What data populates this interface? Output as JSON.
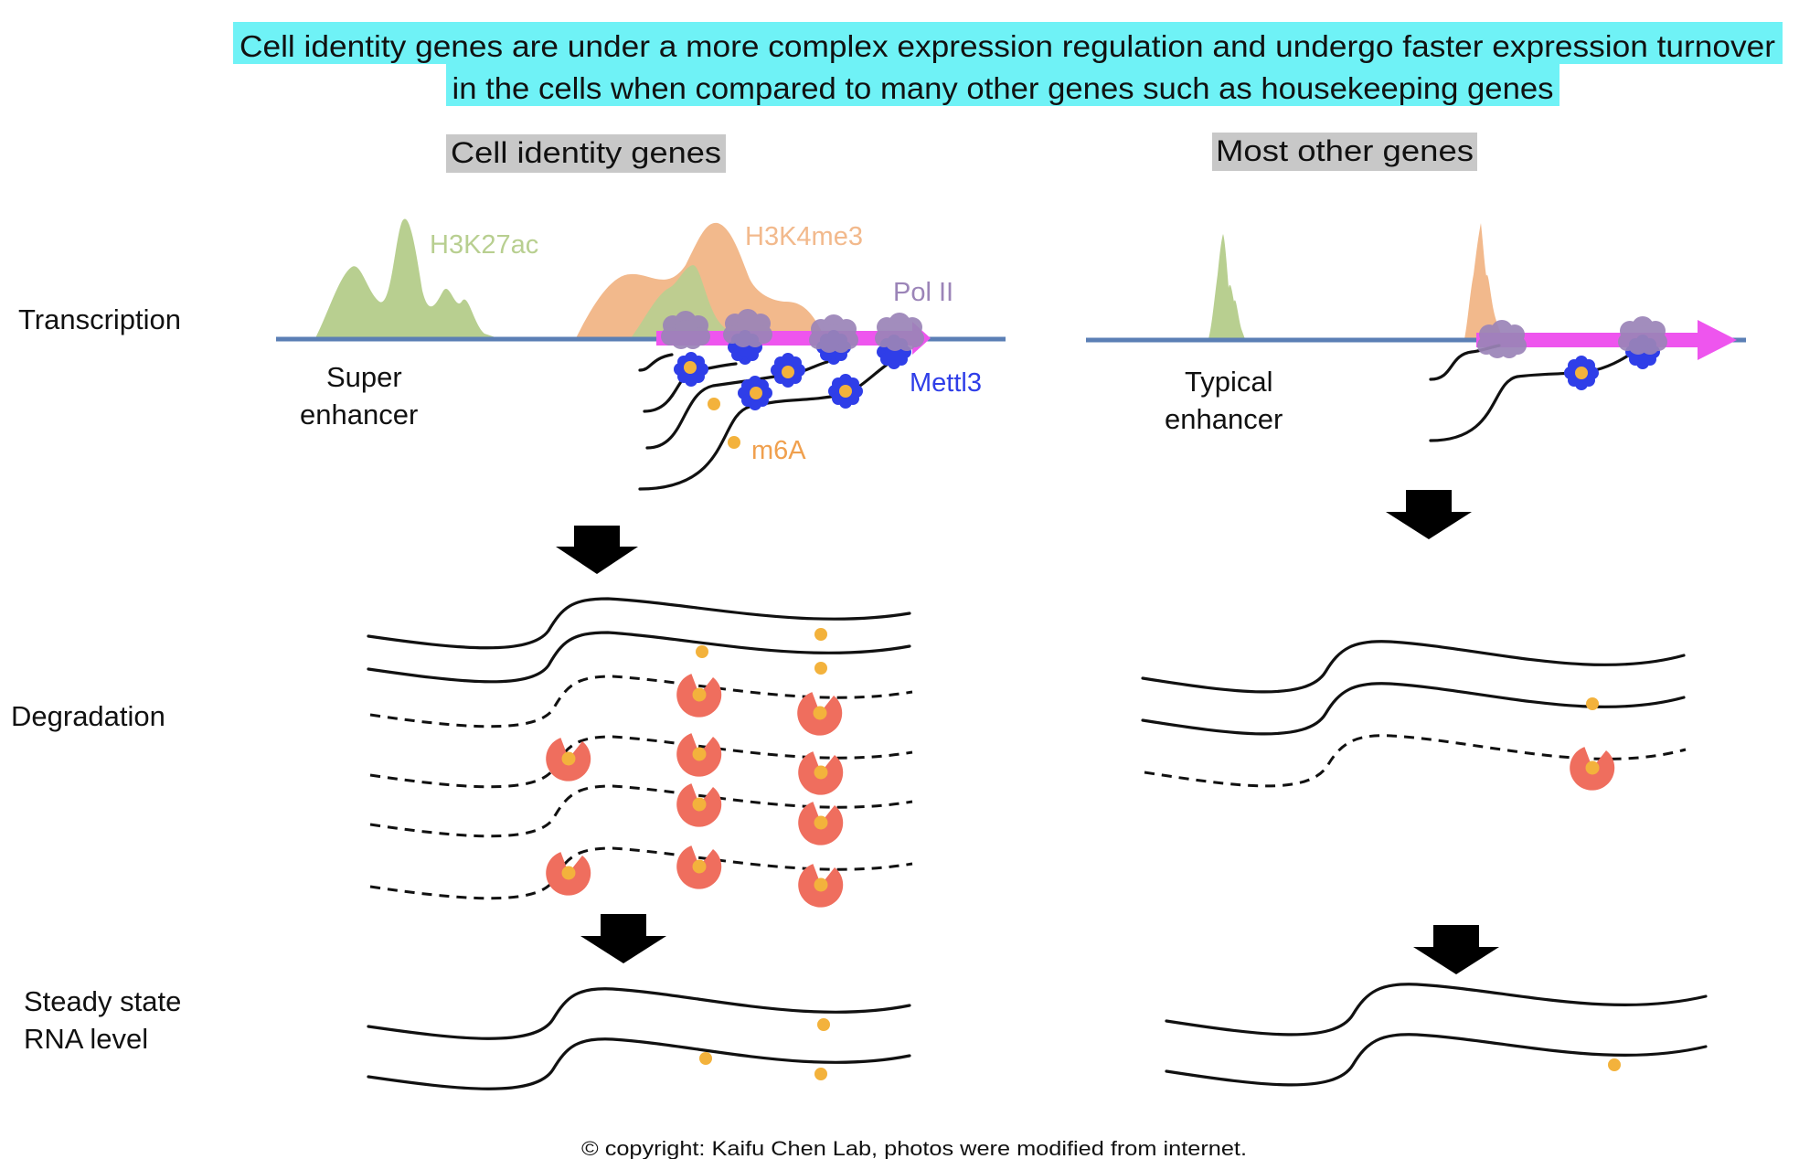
{
  "title": {
    "line1": "Cell identity genes are under a more complex expression regulation and undergo faster expression turnover",
    "line2": "in the cells when compared to many other genes such as housekeeping genes",
    "highlight_color": "#6ff2f6"
  },
  "columns": {
    "left_header": "Cell identity genes",
    "right_header": "Most other genes",
    "header_bg": "#c8c8c8"
  },
  "rows": {
    "transcription": "Transcription",
    "degradation": "Degradation",
    "steady_line1": "Steady state",
    "steady_line2": "RNA level"
  },
  "labels": {
    "h3k27ac": "H3K27ac",
    "h3k4me3": "H3K4me3",
    "pol2": "Pol II",
    "mettl3": "Mettl3",
    "m6a": "m6A",
    "super1": "Super",
    "super2": "enhancer",
    "typical1": "Typical",
    "typical2": "enhancer"
  },
  "colors": {
    "h3k27ac": "#b8cf90",
    "h3k4me3": "#f2b98c",
    "pol2": "#9b84b8",
    "mettl3": "#2f3ee8",
    "m6a": "#f3b23c",
    "gene_arrow": "#ee55ee",
    "dna": "#5b7fb5",
    "degrader": "#ef6e5e"
  },
  "footer": "© copyright: Kaifu Chen Lab, photos were modified from internet."
}
